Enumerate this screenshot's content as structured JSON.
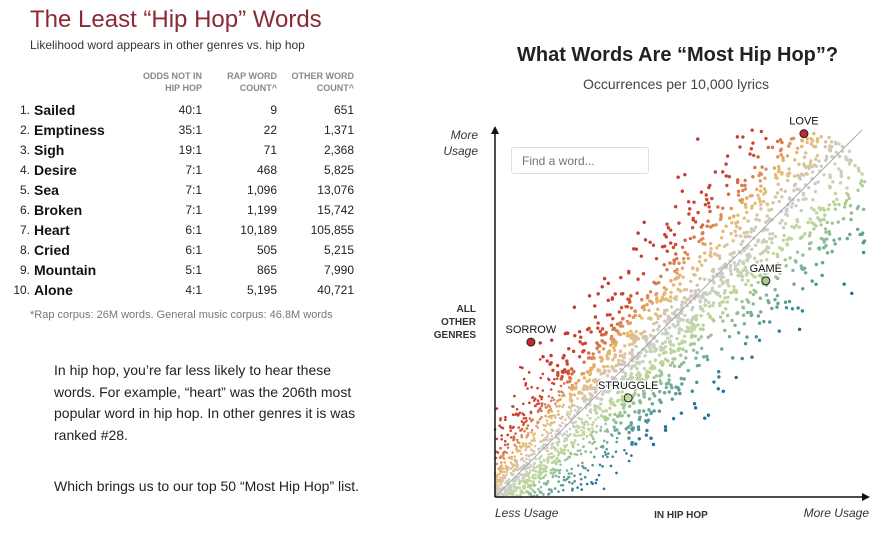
{
  "left": {
    "title": "The Least “Hip Hop” Words",
    "subtitle": "Likelihood word appears in other genres vs. hip hop",
    "headers": [
      "ODDS NOT IN HIP HOP",
      "RAP WORD COUNT^",
      "OTHER WORD COUNT^"
    ],
    "header_lines": [
      [
        "ODDS NOT IN",
        "HIP HOP"
      ],
      [
        "RAP WORD",
        "COUNT^"
      ],
      [
        "OTHER WORD",
        "COUNT^"
      ]
    ],
    "rows": [
      {
        "rank": "1.",
        "word": "Sailed",
        "odds": "40:1",
        "rap": "9",
        "other": "651"
      },
      {
        "rank": "2.",
        "word": "Emptiness",
        "odds": "35:1",
        "rap": "22",
        "other": "1,371"
      },
      {
        "rank": "3.",
        "word": "Sigh",
        "odds": "19:1",
        "rap": "71",
        "other": "2,368"
      },
      {
        "rank": "4.",
        "word": "Desire",
        "odds": "7:1",
        "rap": "468",
        "other": "5,825"
      },
      {
        "rank": "5.",
        "word": "Sea",
        "odds": "7:1",
        "rap": "1,096",
        "other": "13,076"
      },
      {
        "rank": "6.",
        "word": "Broken",
        "odds": "7:1",
        "rap": "1,199",
        "other": "15,742"
      },
      {
        "rank": "7.",
        "word": "Heart",
        "odds": "6:1",
        "rap": "10,189",
        "other": "105,855"
      },
      {
        "rank": "8.",
        "word": "Cried",
        "odds": "6:1",
        "rap": "505",
        "other": "5,215"
      },
      {
        "rank": "9.",
        "word": "Mountain",
        "odds": "5:1",
        "rap": "865",
        "other": "7,990"
      },
      {
        "rank": "10.",
        "word": "Alone",
        "odds": "4:1",
        "rap": "5,195",
        "other": "40,721"
      }
    ],
    "footnote": "*Rap corpus: 26M words. General music corpus: 46.8M words",
    "paragraph1": "In hip hop, you’re far less likely to hear these words. For example, “heart” was the 206th most popular word in hip hop. In other genres it is was ranked #28.",
    "paragraph2": "Which brings us to our top 50 “Most Hip Hop” list."
  },
  "search": {
    "placeholder": "Find a word..."
  },
  "chart_data": {
    "type": "scatter",
    "title": "What Words Are “Most Hip Hop”?",
    "subtitle": "Occurrences per 10,000 lyrics",
    "xlabel": "IN HIP HOP",
    "ylabel": "ALL OTHER GENRES",
    "ylabel_lines": [
      "ALL",
      "OTHER",
      "GENRES"
    ],
    "x_ticks": [
      "Less Usage",
      "More Usage"
    ],
    "y_top_label": [
      "More",
      "Usage"
    ],
    "xlim": [
      0,
      100
    ],
    "ylim": [
      0,
      100
    ],
    "scale": "relative usage (log-like), unlabeled",
    "reference_line": "y = x",
    "colors": {
      "more_other": "#c0282d",
      "neutral": "#cccccc",
      "balanced_hiphop": "#b8d48e",
      "more_hiphop": "#1f6f9a"
    },
    "labeled_points": [
      {
        "word": "LOVE",
        "x": 83.5,
        "y": 99,
        "color": "#c0282d"
      },
      {
        "word": "GAME",
        "x": 73.2,
        "y": 58.9,
        "color": "#a8c890"
      },
      {
        "word": "SORROW",
        "x": 9.7,
        "y": 42.2,
        "color": "#c0282d"
      },
      {
        "word": "STRUGGLE",
        "x": 36,
        "y": 27,
        "color": "#c6d99a"
      }
    ],
    "point_count_approx": 3000
  }
}
